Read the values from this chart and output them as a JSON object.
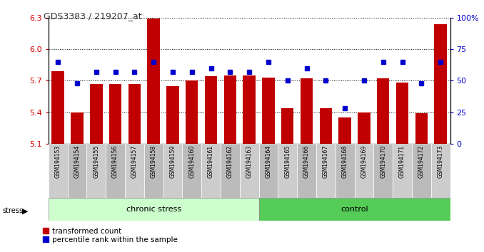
{
  "title": "GDS3383 / 219207_at",
  "samples": [
    "GSM194153",
    "GSM194154",
    "GSM194155",
    "GSM194156",
    "GSM194157",
    "GSM194158",
    "GSM194159",
    "GSM194160",
    "GSM194161",
    "GSM194162",
    "GSM194163",
    "GSM194164",
    "GSM194165",
    "GSM194166",
    "GSM194167",
    "GSM194168",
    "GSM194169",
    "GSM194170",
    "GSM194171",
    "GSM194172",
    "GSM194173"
  ],
  "bar_values": [
    5.79,
    5.4,
    5.67,
    5.67,
    5.67,
    6.29,
    5.65,
    5.7,
    5.74,
    5.75,
    5.75,
    5.73,
    5.44,
    5.72,
    5.44,
    5.35,
    5.4,
    5.72,
    5.68,
    5.39,
    6.24
  ],
  "percentile_values": [
    65,
    48,
    57,
    57,
    57,
    65,
    57,
    57,
    60,
    57,
    57,
    65,
    50,
    60,
    50,
    28,
    50,
    65,
    65,
    48,
    65
  ],
  "bar_color": "#c00000",
  "percentile_color": "#0000cc",
  "ylim_left": [
    5.1,
    6.3
  ],
  "ylim_right": [
    0,
    100
  ],
  "yticks_left": [
    5.1,
    5.4,
    5.7,
    6.0,
    6.3
  ],
  "yticks_right": [
    0,
    25,
    50,
    75,
    100
  ],
  "ytick_labels_right": [
    "0",
    "25",
    "50",
    "75",
    "100%"
  ],
  "bar_width": 0.65,
  "chronic_count": 11,
  "group_labels": [
    "chronic stress",
    "control"
  ],
  "chronic_color": "#ccffcc",
  "control_color": "#55cc55",
  "legend_labels": [
    "transformed count",
    "percentile rank within the sample"
  ],
  "left_tick_color": "#cc0000",
  "right_tick_color": "#0000cc",
  "label_bg_color": "#cccccc",
  "label_sep_color": "#ffffff"
}
